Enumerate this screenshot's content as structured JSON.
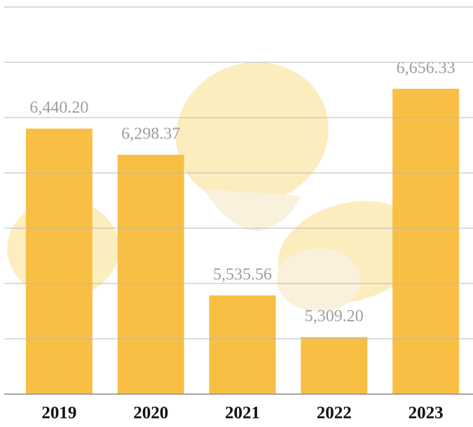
{
  "chart_data": {
    "type": "bar",
    "categories": [
      "2019",
      "2020",
      "2021",
      "2022",
      "2023"
    ],
    "values": [
      6440.2,
      6298.37,
      5535.56,
      5309.2,
      6656.33
    ],
    "value_labels": [
      "6,440.20",
      "6,298.37",
      "5,535.56",
      "5,309.20",
      "6,656.33"
    ],
    "color": "#f9bf45",
    "ylim": [
      5000,
      7100
    ],
    "yticks": [
      5000,
      5300,
      5600,
      5900,
      6200,
      6500,
      6800,
      7100
    ],
    "grid": true
  }
}
